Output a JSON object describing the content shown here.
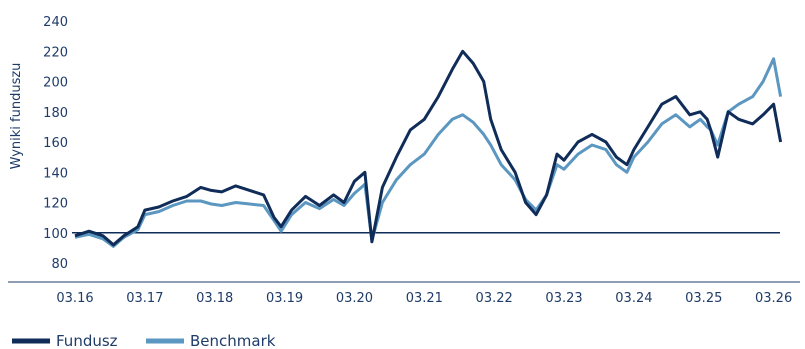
{
  "chart_data": {
    "type": "line",
    "ylabel": "Wyniki funduszu",
    "ylim": [
      80,
      240
    ],
    "yticks": [
      80,
      100,
      120,
      140,
      160,
      180,
      200,
      220,
      240
    ],
    "x_ticks": [
      "03.16",
      "03.17",
      "03.18",
      "03.19",
      "03.20",
      "03.21",
      "03.22",
      "03.23",
      "03.24",
      "03.25",
      "03.26"
    ],
    "x_range": [
      2016.0,
      2026.12
    ],
    "reference_line": 100,
    "grid": false,
    "legend_position": "bottom-left",
    "series": [
      {
        "name": "Fundusz",
        "color": "#102c59",
        "x": [
          2016.0,
          2016.2,
          2016.4,
          2016.55,
          2016.7,
          2016.9,
          2017.0,
          2017.2,
          2017.4,
          2017.6,
          2017.8,
          2017.95,
          2018.1,
          2018.3,
          2018.5,
          2018.7,
          2018.85,
          2018.95,
          2019.1,
          2019.3,
          2019.5,
          2019.7,
          2019.85,
          2020.0,
          2020.1,
          2020.15,
          2020.25,
          2020.4,
          2020.6,
          2020.8,
          2021.0,
          2021.2,
          2021.4,
          2021.55,
          2021.7,
          2021.85,
          2021.95,
          2022.1,
          2022.3,
          2022.45,
          2022.6,
          2022.75,
          2022.9,
          2023.0,
          2023.2,
          2023.4,
          2023.6,
          2023.75,
          2023.9,
          2024.0,
          2024.2,
          2024.4,
          2024.6,
          2024.8,
          2024.95,
          2025.05,
          2025.1,
          2025.2,
          2025.35,
          2025.5,
          2025.7,
          2025.85,
          2026.0,
          2026.1
        ],
        "values": [
          98,
          101,
          98,
          92,
          98,
          104,
          115,
          117,
          121,
          124,
          130,
          128,
          127,
          131,
          128,
          125,
          110,
          104,
          115,
          124,
          118,
          125,
          120,
          134,
          138,
          140,
          94,
          130,
          150,
          168,
          175,
          190,
          208,
          220,
          212,
          200,
          175,
          155,
          140,
          120,
          112,
          125,
          152,
          148,
          160,
          165,
          160,
          150,
          145,
          155,
          170,
          185,
          190,
          178,
          180,
          175,
          168,
          150,
          180,
          175,
          172,
          178,
          185,
          160
        ]
      },
      {
        "name": "Benchmark",
        "color": "#5b97c0",
        "x": [
          2016.0,
          2016.2,
          2016.4,
          2016.55,
          2016.7,
          2016.9,
          2017.0,
          2017.2,
          2017.4,
          2017.6,
          2017.8,
          2017.95,
          2018.1,
          2018.3,
          2018.5,
          2018.7,
          2018.85,
          2018.95,
          2019.1,
          2019.3,
          2019.5,
          2019.7,
          2019.85,
          2020.0,
          2020.1,
          2020.15,
          2020.25,
          2020.4,
          2020.6,
          2020.8,
          2021.0,
          2021.2,
          2021.4,
          2021.55,
          2021.7,
          2021.85,
          2021.95,
          2022.1,
          2022.3,
          2022.45,
          2022.6,
          2022.75,
          2022.9,
          2023.0,
          2023.2,
          2023.4,
          2023.6,
          2023.75,
          2023.9,
          2024.0,
          2024.2,
          2024.4,
          2024.6,
          2024.8,
          2024.95,
          2025.05,
          2025.1,
          2025.2,
          2025.35,
          2025.5,
          2025.7,
          2025.85,
          2026.0,
          2026.1
        ],
        "values": [
          97,
          99,
          96,
          91,
          97,
          102,
          112,
          114,
          118,
          121,
          121,
          119,
          118,
          120,
          119,
          118,
          108,
          101,
          112,
          120,
          116,
          122,
          118,
          126,
          130,
          132,
          95,
          120,
          135,
          145,
          152,
          165,
          175,
          178,
          173,
          165,
          158,
          145,
          135,
          122,
          115,
          125,
          145,
          142,
          152,
          158,
          155,
          145,
          140,
          150,
          160,
          172,
          178,
          170,
          175,
          170,
          168,
          158,
          180,
          185,
          190,
          200,
          215,
          190
        ]
      }
    ]
  }
}
